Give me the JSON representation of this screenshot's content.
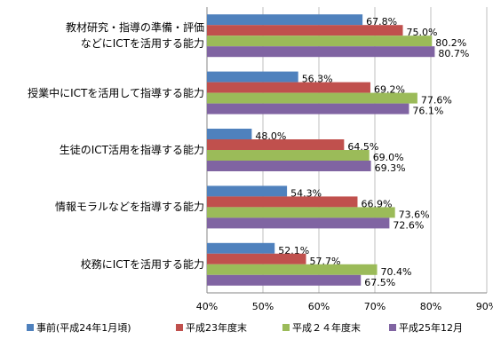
{
  "chart_data": {
    "type": "bar",
    "orientation": "horizontal",
    "categories": [
      "教材研究・指導の準備・評価\nなどにICTを活用する能力",
      "授業中にICTを活用して指導する能力",
      "生徒のICT活用を指導する能力",
      "情報モラルなどを指導する能力",
      "校務にICTを活用する能力"
    ],
    "series": [
      {
        "name": "事前(平成24年1月頃)",
        "color": "#4f81bd",
        "values": [
          67.8,
          56.3,
          48.0,
          54.3,
          52.1
        ],
        "value_labels": [
          "67.8%",
          "56.3%",
          "48.0%",
          "54.3%",
          "52.1%"
        ]
      },
      {
        "name": "平成23年度末",
        "color": "#c0504d",
        "values": [
          75.0,
          69.2,
          64.5,
          66.9,
          57.7
        ],
        "value_labels": [
          "75.0%",
          "69.2%",
          "64.5%",
          "66.9%",
          "57.7%"
        ]
      },
      {
        "name": "平成２４年度末",
        "color": "#9bbb59",
        "values": [
          80.2,
          77.6,
          69.0,
          73.6,
          70.4
        ],
        "value_labels": [
          "80.2%",
          "77.6%",
          "69.0%",
          "73.6%",
          "70.4%"
        ]
      },
      {
        "name": "平成25年12月",
        "color": "#8064a2",
        "values": [
          80.7,
          76.1,
          69.3,
          72.6,
          67.5
        ],
        "value_labels": [
          "80.7%",
          "76.1%",
          "69.3%",
          "72.6%",
          "67.5%"
        ]
      }
    ],
    "xlim": [
      40,
      90
    ],
    "xticks": [
      {
        "value": 40,
        "label": "40%"
      },
      {
        "value": 50,
        "label": "50%"
      },
      {
        "value": 60,
        "label": "60%"
      },
      {
        "value": 70,
        "label": "70%"
      },
      {
        "value": 80,
        "label": "80%"
      },
      {
        "value": 90,
        "label": "90%"
      }
    ],
    "grid": true,
    "legend": "bottom"
  }
}
